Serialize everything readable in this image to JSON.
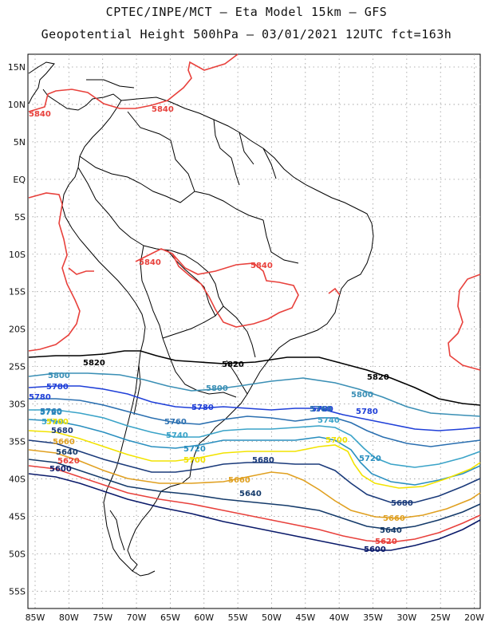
{
  "header": {
    "title_line1": "CPTEC/INPE/MCT –   Eta Model 15km – GFS",
    "title_line2": "Geopotential Height 500hPa – 03/01/2021 12UTC fct=163h"
  },
  "map": {
    "lat_ticks": [
      "15N",
      "10N",
      "5N",
      "EQ",
      "5S",
      "10S",
      "15S",
      "20S",
      "25S",
      "30S",
      "35S",
      "40S",
      "45S",
      "50S",
      "55S"
    ],
    "lon_ticks": [
      "85W",
      "80W",
      "75W",
      "70W",
      "65W",
      "60W",
      "55W",
      "50W",
      "45W",
      "40W",
      "35W",
      "30W",
      "25W",
      "20W"
    ],
    "grid": true,
    "colors": {
      "coast": "#000000",
      "grid": "#9a9a9a"
    }
  },
  "contours": [
    {
      "value": "5840",
      "color": "#e8413c",
      "labels": [
        "5840",
        "5840",
        "5840",
        "5840"
      ]
    },
    {
      "value": "5820",
      "color": "#000000",
      "labels": [
        "5820",
        "5820",
        "5820"
      ]
    },
    {
      "value": "5800",
      "color": "#3a8fb5",
      "labels": [
        "5800",
        "5800",
        "5800"
      ]
    },
    {
      "value": "5780",
      "color": "#1f3fd8",
      "labels": [
        "5780",
        "5780",
        "5780",
        "5780",
        "5780"
      ]
    },
    {
      "value": "5760",
      "color": "#2a6fb0",
      "labels": [
        "5760",
        "5760",
        "5760"
      ]
    },
    {
      "value": "5740",
      "color": "#3aa3c8",
      "labels": [
        "5740",
        "5740",
        "5740"
      ]
    },
    {
      "value": "5720",
      "color": "#2a8fbf",
      "labels": [
        "5720",
        "5720",
        "5720"
      ]
    },
    {
      "value": "5700",
      "color": "#f2e300",
      "labels": [
        "5700",
        "5700",
        "5700"
      ]
    },
    {
      "value": "5680",
      "color": "#1a3a7a",
      "labels": [
        "5680",
        "5680",
        "5680"
      ]
    },
    {
      "value": "5660",
      "color": "#e0a020",
      "labels": [
        "5660",
        "5660",
        "5660"
      ]
    },
    {
      "value": "5640",
      "color": "#143a6a",
      "labels": [
        "5640",
        "5640",
        "5640"
      ]
    },
    {
      "value": "5620",
      "color": "#e8413c",
      "labels": [
        "5620",
        "5620"
      ]
    },
    {
      "value": "5600",
      "color": "#0a1a6a",
      "labels": [
        "5600",
        "5600"
      ]
    }
  ]
}
